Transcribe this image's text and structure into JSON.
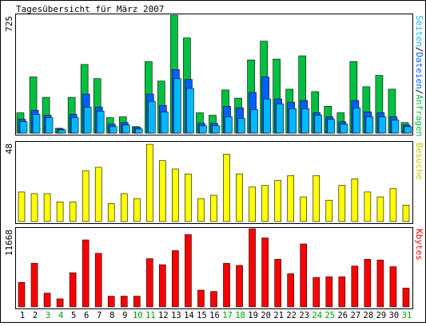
{
  "title": "Tagesübersicht für März 2007",
  "colors": {
    "frame": "#000000",
    "background": "#ffffff",
    "weekday_label": "#000000",
    "weekend_label": "#00a000",
    "pages": "#00b8ff",
    "files": "#0060ff",
    "hits": "#00c040",
    "visits": "#ffff00",
    "kbytes": "#ff0000",
    "label_seiten": "#00b8ff",
    "label_dateien": "#0060ff",
    "label_anfragen": "#00c040",
    "label_besuche": "#c8c800",
    "label_kbytes": "#ff0000"
  },
  "chart_data": [
    {
      "type": "bar",
      "panel": "hits",
      "ymax_label": "725",
      "ylim": [
        0,
        725
      ],
      "right_label": {
        "parts": [
          {
            "text": "Seiten",
            "color_key": "label_seiten"
          },
          {
            "text": "/",
            "color_key": "frame"
          },
          {
            "text": "Dateien",
            "color_key": "label_dateien"
          },
          {
            "text": "/",
            "color_key": "frame"
          },
          {
            "text": "Anfragen",
            "color_key": "label_anfragen"
          }
        ]
      },
      "categories": [
        "1",
        "2",
        "3",
        "4",
        "5",
        "6",
        "7",
        "8",
        "9",
        "10",
        "11",
        "12",
        "13",
        "14",
        "15",
        "16",
        "17",
        "18",
        "19",
        "20",
        "21",
        "22",
        "23",
        "24",
        "25",
        "26",
        "27",
        "28",
        "29",
        "30",
        "31"
      ],
      "series": [
        {
          "name": "Anfragen",
          "color_key": "hits",
          "values": [
            125,
            345,
            220,
            30,
            220,
            422,
            335,
            95,
            100,
            40,
            440,
            320,
            725,
            585,
            125,
            110,
            265,
            215,
            450,
            565,
            455,
            270,
            475,
            255,
            165,
            125,
            440,
            285,
            355,
            270,
            65
          ]
        },
        {
          "name": "Dateien",
          "color_key": "files",
          "values": [
            85,
            140,
            110,
            25,
            115,
            240,
            160,
            55,
            65,
            35,
            240,
            170,
            390,
            330,
            60,
            60,
            165,
            155,
            250,
            345,
            210,
            190,
            200,
            125,
            100,
            70,
            200,
            130,
            125,
            100,
            50
          ]
        },
        {
          "name": "Seiten",
          "color_key": "pages",
          "values": [
            70,
            115,
            95,
            20,
            95,
            160,
            135,
            40,
            50,
            25,
            195,
            130,
            335,
            275,
            45,
            45,
            100,
            90,
            145,
            210,
            180,
            150,
            150,
            110,
            85,
            55,
            155,
            100,
            100,
            80,
            40
          ]
        }
      ]
    },
    {
      "type": "bar",
      "panel": "visits",
      "ymax_label": "48",
      "ylim": [
        0,
        48
      ],
      "right_label": {
        "parts": [
          {
            "text": "Besuche",
            "color_key": "label_besuche"
          }
        ]
      },
      "categories": [
        "1",
        "2",
        "3",
        "4",
        "5",
        "6",
        "7",
        "8",
        "9",
        "10",
        "11",
        "12",
        "13",
        "14",
        "15",
        "16",
        "17",
        "18",
        "19",
        "20",
        "21",
        "22",
        "23",
        "24",
        "25",
        "26",
        "27",
        "28",
        "29",
        "30",
        "31"
      ],
      "series": [
        {
          "name": "Besuche",
          "color_key": "visits",
          "values": [
            18,
            17,
            17,
            12,
            12,
            31,
            33,
            11,
            17,
            14,
            47,
            37,
            32,
            29,
            14,
            16,
            41,
            29,
            21,
            22,
            25,
            28,
            15,
            28,
            13,
            22,
            26,
            18,
            15,
            20,
            10
          ]
        }
      ]
    },
    {
      "type": "bar",
      "panel": "kbytes",
      "ymax_label": "11668",
      "ylim": [
        0,
        11668
      ],
      "right_label": {
        "parts": [
          {
            "text": "Kbytes",
            "color_key": "label_kbytes"
          }
        ]
      },
      "categories": [
        "1",
        "2",
        "3",
        "4",
        "5",
        "6",
        "7",
        "8",
        "9",
        "10",
        "11",
        "12",
        "13",
        "14",
        "15",
        "16",
        "17",
        "18",
        "19",
        "20",
        "21",
        "22",
        "23",
        "24",
        "25",
        "26",
        "27",
        "28",
        "29",
        "30",
        "31"
      ],
      "series": [
        {
          "name": "Kbytes",
          "color_key": "kbytes",
          "values": [
            3650,
            6500,
            2050,
            1200,
            5100,
            10000,
            8000,
            1600,
            1600,
            1600,
            7200,
            6300,
            8400,
            10800,
            2500,
            2300,
            6500,
            6200,
            11668,
            10300,
            7100,
            4950,
            9400,
            4400,
            4500,
            4500,
            6100,
            7100,
            7000,
            6000,
            2800
          ]
        }
      ]
    }
  ],
  "x_axis": {
    "labels": [
      {
        "text": "1",
        "weekend": false
      },
      {
        "text": "2",
        "weekend": false
      },
      {
        "text": "3",
        "weekend": true
      },
      {
        "text": "4",
        "weekend": true
      },
      {
        "text": "5",
        "weekend": false
      },
      {
        "text": "6",
        "weekend": false
      },
      {
        "text": "7",
        "weekend": false
      },
      {
        "text": "8",
        "weekend": false
      },
      {
        "text": "9",
        "weekend": false
      },
      {
        "text": "10",
        "weekend": true
      },
      {
        "text": "11",
        "weekend": true
      },
      {
        "text": "12",
        "weekend": false
      },
      {
        "text": "13",
        "weekend": false
      },
      {
        "text": "14",
        "weekend": false
      },
      {
        "text": "15",
        "weekend": false
      },
      {
        "text": "16",
        "weekend": false
      },
      {
        "text": "17",
        "weekend": true
      },
      {
        "text": "18",
        "weekend": true
      },
      {
        "text": "19",
        "weekend": false
      },
      {
        "text": "20",
        "weekend": false
      },
      {
        "text": "21",
        "weekend": false
      },
      {
        "text": "22",
        "weekend": false
      },
      {
        "text": "23",
        "weekend": false
      },
      {
        "text": "24",
        "weekend": true
      },
      {
        "text": "25",
        "weekend": true
      },
      {
        "text": "26",
        "weekend": false
      },
      {
        "text": "27",
        "weekend": false
      },
      {
        "text": "28",
        "weekend": false
      },
      {
        "text": "29",
        "weekend": false
      },
      {
        "text": "30",
        "weekend": false
      },
      {
        "text": "31",
        "weekend": true
      }
    ]
  }
}
